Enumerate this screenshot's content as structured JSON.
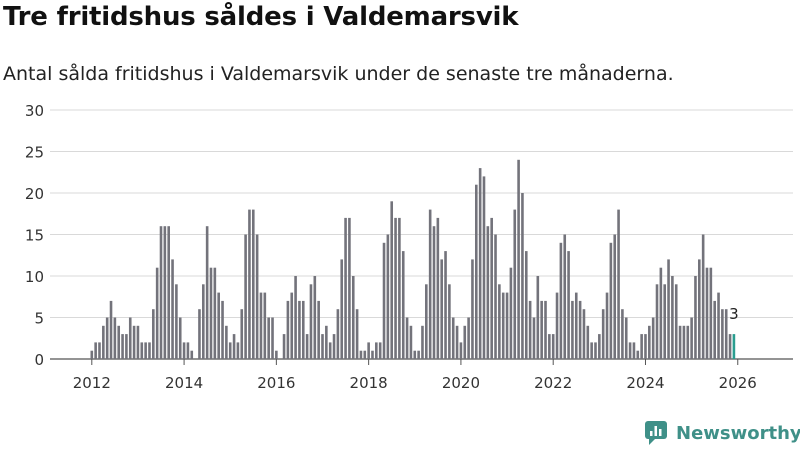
{
  "header": {
    "title": "Tre fritidshus såldes i Valdemarsvik",
    "subtitle": "Antal sålda fritidshus i Valdemarsvik under de senaste tre månaderna."
  },
  "brand": {
    "name": "Newsworthy",
    "color": "#3f9088"
  },
  "colors": {
    "bar": "#73737b",
    "highlight": "#2a9d8f",
    "grid": "#d9d9d9"
  },
  "chart_data": {
    "type": "bar",
    "x_start": "2012-01",
    "interval": "month",
    "yticks": [
      0,
      5,
      10,
      15,
      20,
      25,
      30
    ],
    "ylim": [
      0,
      30
    ],
    "xticks": [
      "2012",
      "2014",
      "2016",
      "2018",
      "2020",
      "2022",
      "2024",
      "2026"
    ],
    "highlight_label": "3",
    "values": [
      1,
      2,
      2,
      4,
      5,
      7,
      5,
      4,
      3,
      3,
      5,
      4,
      4,
      2,
      2,
      2,
      6,
      11,
      16,
      16,
      16,
      12,
      9,
      5,
      2,
      2,
      1,
      0,
      6,
      9,
      16,
      11,
      11,
      8,
      7,
      4,
      2,
      3,
      2,
      6,
      15,
      18,
      18,
      15,
      8,
      8,
      5,
      5,
      1,
      0,
      3,
      7,
      8,
      10,
      7,
      7,
      3,
      9,
      10,
      7,
      3,
      4,
      2,
      3,
      6,
      12,
      17,
      17,
      10,
      6,
      1,
      1,
      2,
      1,
      2,
      2,
      14,
      15,
      19,
      17,
      17,
      13,
      5,
      4,
      1,
      1,
      4,
      9,
      18,
      16,
      17,
      12,
      13,
      9,
      5,
      4,
      2,
      4,
      5,
      12,
      21,
      23,
      22,
      16,
      17,
      15,
      9,
      8,
      8,
      11,
      18,
      24,
      20,
      13,
      7,
      5,
      10,
      7,
      7,
      3,
      3,
      8,
      14,
      15,
      13,
      7,
      8,
      7,
      6,
      4,
      2,
      2,
      3,
      6,
      8,
      14,
      15,
      18,
      6,
      5,
      2,
      2,
      1,
      3,
      3,
      4,
      5,
      9,
      11,
      9,
      12,
      10,
      9,
      4,
      4,
      4,
      5,
      10,
      12,
      15,
      11,
      11,
      7,
      8,
      6,
      6,
      3,
      3
    ]
  }
}
